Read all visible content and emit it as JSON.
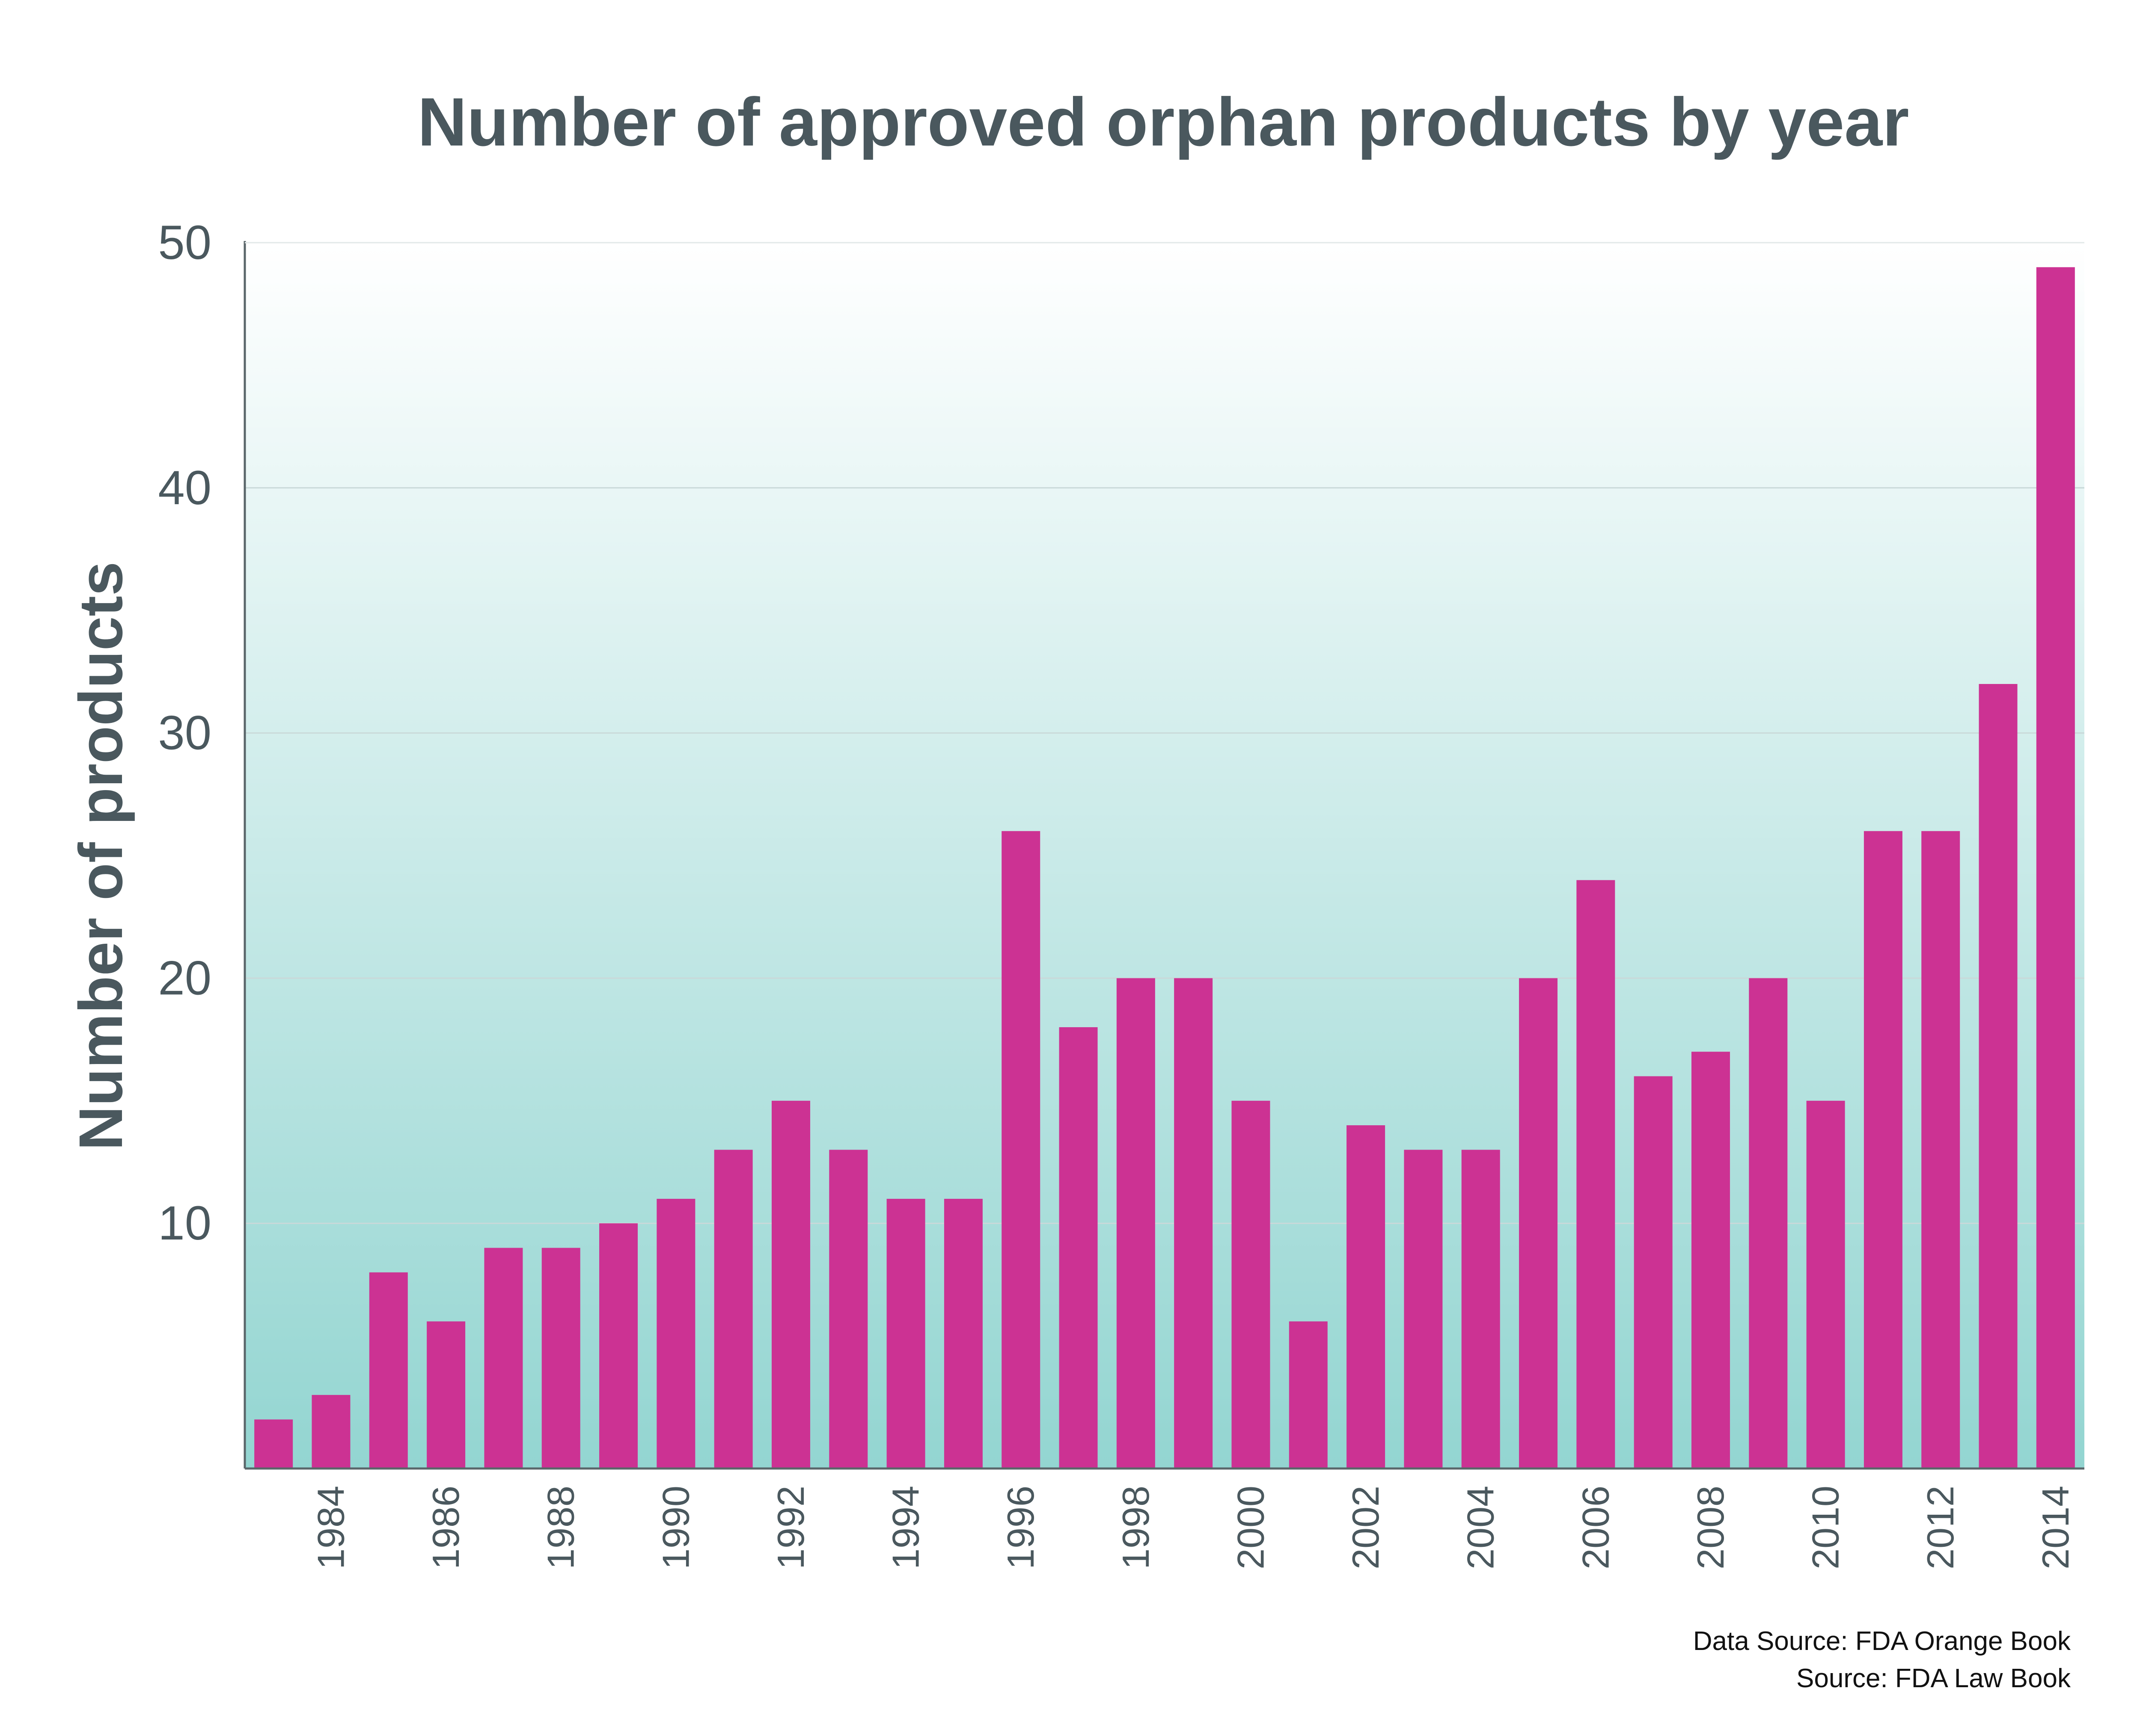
{
  "chart_data": {
    "type": "bar",
    "title": "Number of approved orphan products by year",
    "xlabel": "",
    "ylabel": "Number of products",
    "categories": [
      "1983",
      "1984",
      "1985",
      "1986",
      "1987",
      "1988",
      "1989",
      "1990",
      "1991",
      "1992",
      "1993",
      "1994",
      "1995",
      "1996",
      "1997",
      "1998",
      "1999",
      "2000",
      "2001",
      "2002",
      "2003",
      "2004",
      "2005",
      "2006",
      "2007",
      "2008",
      "2009",
      "2010",
      "2011",
      "2012",
      "2013",
      "2014"
    ],
    "x_tick_labels": [
      "1984",
      "1986",
      "1988",
      "1990",
      "1992",
      "1994",
      "1996",
      "1998",
      "2000",
      "2002",
      "2004",
      "2006",
      "2008",
      "2010",
      "2012",
      "2014"
    ],
    "values": [
      2,
      3,
      8,
      6,
      9,
      9,
      10,
      11,
      13,
      15,
      13,
      11,
      11,
      26,
      18,
      20,
      20,
      15,
      6,
      14,
      13,
      13,
      20,
      24,
      16,
      17,
      20,
      15,
      26,
      26,
      32,
      49
    ],
    "ylim": [
      0,
      50
    ],
    "y_ticks": [
      10,
      20,
      30,
      40,
      50
    ],
    "grid": true,
    "bar_color": "#cc3293",
    "background_gradient": [
      "#ffffff",
      "#93d5d1"
    ]
  },
  "notes": {
    "data_source": "Data Source: FDA Orange Book",
    "source": "Source: FDA Law Book"
  }
}
